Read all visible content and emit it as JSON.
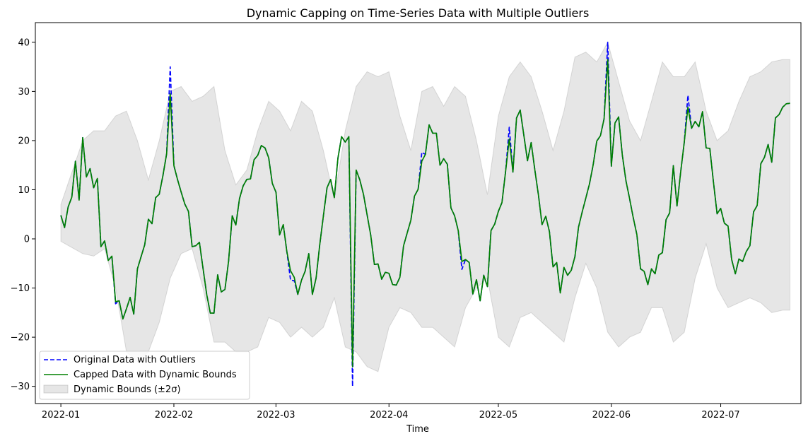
{
  "chart_data": {
    "type": "line",
    "title": "Dynamic Capping on Time-Series Data with Multiple Outliers",
    "xlabel": "Time",
    "ylabel": "",
    "x_range": [
      "2021-12-25",
      "2022-07-23"
    ],
    "ylim": [
      -33.5,
      44
    ],
    "x_ticks": [
      "2022-01",
      "2022-02",
      "2022-03",
      "2022-04",
      "2022-05",
      "2022-06",
      "2022-07"
    ],
    "x_tick_dates": [
      "2022-01-01",
      "2022-02-01",
      "2022-03-01",
      "2022-04-01",
      "2022-05-01",
      "2022-06-01",
      "2022-07-01"
    ],
    "y_ticks": [
      -30,
      -20,
      -10,
      0,
      10,
      20,
      30,
      40
    ],
    "y_tick_labels": [
      "−30",
      "−20",
      "−10",
      "0",
      "10",
      "20",
      "30",
      "40"
    ],
    "grid": false,
    "legend_position": "lower-left",
    "start_date": "2022-01-01",
    "series": [
      {
        "name": "Original Data with Outliers",
        "color": "#0000ff",
        "style": "dashed",
        "values": [
          4.8,
          2.3,
          6.5,
          8.5,
          15.8,
          7.9,
          20.6,
          12.6,
          14.3,
          10.4,
          12.3,
          -1.6,
          -0.4,
          -4.4,
          -3.5,
          -13.2,
          -12.6,
          -16.3,
          -14.2,
          -11.9,
          -15.3,
          -6.1,
          -3.6,
          -1.2,
          4.0,
          3.1,
          8.4,
          9.1,
          12.9,
          17.3,
          35.0,
          14.9,
          12.1,
          9.5,
          7.1,
          5.6,
          -1.6,
          -1.4,
          -0.7,
          -6.0,
          -11.3,
          -15.1,
          -15.1,
          -7.3,
          -10.8,
          -10.3,
          -4.6,
          4.7,
          2.8,
          8.2,
          10.8,
          12.1,
          12.2,
          16.1,
          17.0,
          19.0,
          18.5,
          16.5,
          11.3,
          9.5,
          0.8,
          2.9,
          -2.6,
          -8.4,
          -8.5,
          -11.3,
          -8.4,
          -6.6,
          -3.0,
          -11.3,
          -8.0,
          -1.2,
          4.6,
          10.4,
          12.1,
          8.4,
          16.4,
          20.8,
          19.7,
          20.8,
          -30.0,
          14.0,
          12.0,
          9.1,
          4.9,
          0.7,
          -5.2,
          -5.1,
          -8.2,
          -6.8,
          -7.0,
          -9.3,
          -9.4,
          -7.8,
          -1.4,
          1.2,
          3.8,
          8.7,
          10.1,
          17.6,
          17.2,
          23.2,
          21.5,
          21.5,
          15.0,
          16.3,
          15.2,
          6.3,
          4.7,
          1.7,
          -6.2,
          -4.2,
          -4.8,
          -11.2,
          -8.3,
          -12.6,
          -7.4,
          -9.7,
          1.7,
          3.0,
          5.6,
          7.4,
          13.8,
          22.7,
          13.6,
          24.6,
          26.2,
          21.0,
          15.9,
          19.6,
          14.1,
          8.9,
          2.9,
          4.6,
          1.5,
          -5.7,
          -4.8,
          -11.0,
          -5.8,
          -7.4,
          -6.4,
          -3.6,
          2.4,
          5.5,
          8.3,
          11.2,
          15.0,
          19.9,
          21.0,
          24.4,
          40.0,
          14.8,
          23.6,
          24.8,
          17.1,
          11.8,
          8.2,
          4.3,
          0.9,
          -6.1,
          -6.6,
          -9.3,
          -6.1,
          -7.1,
          -3.3,
          -2.8,
          3.9,
          5.3,
          14.9,
          6.7,
          13.5,
          19.7,
          29.2,
          22.5,
          23.9,
          22.8,
          25.9,
          18.5,
          18.4,
          11.6,
          5.1,
          6.2,
          3.2,
          2.6,
          -4.2,
          -7.1,
          -4.1,
          -4.6,
          -2.6,
          -1.4,
          5.5,
          6.8,
          15.3,
          16.6,
          19.2,
          15.6,
          24.6,
          25.3,
          26.8,
          27.5,
          27.6
        ],
        "legend_label": "Original Data with Outliers"
      },
      {
        "name": "Capped Data with Dynamic Bounds",
        "color": "#008000",
        "style": "solid",
        "values": [
          4.8,
          2.3,
          6.5,
          8.5,
          15.8,
          7.9,
          20.6,
          12.6,
          14.3,
          10.4,
          12.3,
          -1.6,
          -0.4,
          -4.4,
          -3.5,
          -12.8,
          -12.6,
          -16.3,
          -14.2,
          -11.9,
          -15.3,
          -6.1,
          -3.6,
          -1.2,
          4.0,
          3.1,
          8.4,
          9.1,
          12.9,
          17.3,
          29.5,
          14.9,
          12.1,
          9.5,
          7.1,
          5.6,
          -1.6,
          -1.4,
          -0.7,
          -6.0,
          -11.3,
          -15.1,
          -15.1,
          -7.3,
          -10.8,
          -10.3,
          -4.6,
          4.7,
          2.8,
          8.2,
          10.8,
          12.1,
          12.2,
          16.1,
          17.0,
          19.0,
          18.5,
          16.5,
          11.3,
          9.5,
          0.8,
          2.9,
          -2.6,
          -6.5,
          -7.8,
          -11.3,
          -8.4,
          -6.6,
          -3.0,
          -11.3,
          -8.0,
          -1.2,
          4.6,
          10.4,
          12.1,
          8.4,
          16.4,
          20.8,
          19.7,
          20.8,
          -26.0,
          14.0,
          12.0,
          9.1,
          4.9,
          0.7,
          -5.2,
          -5.1,
          -8.2,
          -6.8,
          -7.0,
          -9.3,
          -9.4,
          -7.8,
          -1.4,
          1.2,
          3.8,
          8.7,
          10.1,
          15.8,
          17.2,
          23.2,
          21.5,
          21.5,
          15.0,
          16.3,
          15.2,
          6.3,
          4.7,
          1.7,
          -4.6,
          -4.2,
          -4.8,
          -11.2,
          -8.3,
          -12.6,
          -7.4,
          -9.7,
          1.7,
          3.0,
          5.6,
          7.4,
          13.8,
          20.3,
          13.6,
          24.6,
          26.2,
          21.0,
          15.9,
          19.6,
          14.1,
          8.9,
          2.9,
          4.6,
          1.5,
          -5.7,
          -4.8,
          -11.0,
          -5.8,
          -7.4,
          -6.4,
          -3.6,
          2.4,
          5.5,
          8.3,
          11.2,
          15.0,
          19.9,
          21.0,
          24.4,
          36.5,
          14.8,
          23.6,
          24.8,
          17.1,
          11.8,
          8.2,
          4.3,
          0.9,
          -6.1,
          -6.6,
          -9.3,
          -6.1,
          -7.1,
          -3.3,
          -2.8,
          3.9,
          5.3,
          14.9,
          6.7,
          13.5,
          19.7,
          26.8,
          22.5,
          23.9,
          22.8,
          25.9,
          18.5,
          18.4,
          11.6,
          5.1,
          6.2,
          3.2,
          2.6,
          -4.2,
          -7.1,
          -4.1,
          -4.6,
          -2.6,
          -1.4,
          5.5,
          6.8,
          15.3,
          16.6,
          19.2,
          15.6,
          24.6,
          25.3,
          26.8,
          27.5,
          27.6
        ],
        "legend_label": "Capped Data with Dynamic Bounds"
      }
    ],
    "bounds": {
      "name": "Dynamic Bounds (±2σ)",
      "color": "#808080",
      "anchors_days": [
        0,
        6,
        9,
        12,
        15,
        18,
        21,
        24,
        27,
        30,
        33,
        36,
        39,
        42,
        45,
        48,
        51,
        54,
        57,
        60,
        63,
        66,
        69,
        72,
        75,
        78,
        81,
        84,
        87,
        90,
        93,
        96,
        99,
        102,
        105,
        108,
        111,
        114,
        117,
        120,
        123,
        126,
        129,
        132,
        135,
        138,
        141,
        144,
        147,
        150,
        153,
        156,
        159,
        162,
        165,
        168,
        171,
        174,
        177,
        180,
        183,
        186,
        189,
        192,
        195,
        198
      ],
      "upper_anchors": [
        7,
        20,
        22,
        22,
        25,
        26,
        20,
        12,
        20,
        30,
        31,
        28,
        29,
        31,
        18,
        11,
        14,
        22,
        28,
        26,
        22,
        28,
        26,
        18,
        8,
        22,
        31,
        34,
        33,
        34,
        25,
        18,
        30,
        31,
        27,
        31,
        29,
        20,
        9,
        25,
        33,
        36,
        33,
        26,
        18,
        26,
        37,
        38,
        36,
        40,
        32,
        24,
        20,
        28,
        36,
        33,
        33,
        36,
        26,
        20,
        22,
        28,
        33,
        34,
        36,
        36.5
      ],
      "lower_anchors": [
        -0.5,
        -3,
        -3.5,
        -2,
        -10,
        -23,
        -25,
        -23,
        -17,
        -8,
        -3,
        -2,
        -10,
        -21,
        -21,
        -23,
        -23,
        -22,
        -16,
        -17,
        -20,
        -18,
        -20,
        -18,
        -12,
        -22,
        -23,
        -26,
        -27,
        -18,
        -14,
        -15,
        -18,
        -18,
        -20,
        -22,
        -14,
        -10,
        -8,
        -20,
        -22,
        -16,
        -15,
        -17,
        -19,
        -21,
        -12,
        -5,
        -10,
        -19,
        -22,
        -20,
        -19,
        -14,
        -14,
        -21,
        -19,
        -8,
        -1,
        -10,
        -14,
        -13,
        -12,
        -13,
        -15,
        -14.5
      ],
      "legend_label": "Dynamic Bounds (±2σ)"
    }
  }
}
